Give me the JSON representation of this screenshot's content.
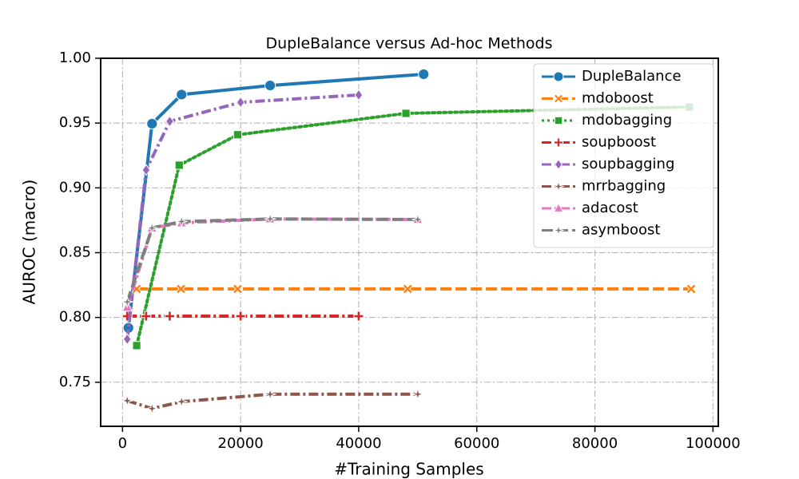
{
  "chart_data": {
    "type": "line",
    "title": "DupleBalance versus Ad-hoc Methods",
    "x_label": "#Training Samples",
    "y_label": "AUROC (macro)",
    "xlim": [
      -3700,
      100900
    ],
    "ylim": [
      0.716,
      1.0
    ],
    "xticks": [
      0,
      20000,
      40000,
      60000,
      80000,
      100000
    ],
    "yticks": [
      0.75,
      {
        "value": 0.8,
        "label": "0.80"
      },
      0.85,
      {
        "value": 0.9,
        "label": "0.90"
      },
      0.95,
      {
        "value": 1.0,
        "label": "1.00"
      }
    ],
    "grid": true,
    "legend": "upper right",
    "series": [
      {
        "name": "DupleBalance",
        "color": "#1f77b4",
        "dash": "solid",
        "marker": "circle",
        "x": [
          1000,
          5000,
          10000,
          25000,
          51000
        ],
        "values": [
          0.792,
          0.9495,
          0.972,
          0.979,
          0.9877
        ]
      },
      {
        "name": "mdoboost",
        "color": "#ff7f0e",
        "dash": "dashed",
        "marker": "x",
        "x": [
          2400,
          9900,
          19500,
          48300,
          96300
        ],
        "values": [
          0.822,
          0.822,
          0.822,
          0.822,
          0.822
        ]
      },
      {
        "name": "mdobagging",
        "color": "#2ca02c",
        "dash": "dotted",
        "marker": "square",
        "x": [
          2400,
          9600,
          19500,
          48000,
          96000
        ],
        "values": [
          0.7783,
          0.9175,
          0.941,
          0.9575,
          0.9624
        ]
      },
      {
        "name": "soupboost",
        "color": "#d62728",
        "dash": "dashdot",
        "marker": "plus",
        "x": [
          800,
          4000,
          8000,
          20000,
          40000
        ],
        "values": [
          0.801,
          0.801,
          0.801,
          0.801,
          0.801
        ]
      },
      {
        "name": "soupbagging",
        "color": "#9467bd",
        "dash": "dashdot",
        "marker": "diamond",
        "x": [
          800,
          4000,
          8000,
          20000,
          40000
        ],
        "values": [
          0.7833,
          0.9138,
          0.9513,
          0.966,
          0.9717
        ]
      },
      {
        "name": "mrrbagging",
        "color": "#8c564b",
        "dash": "dashdot",
        "marker": "star",
        "x": [
          800,
          5000,
          10000,
          25000,
          50000
        ],
        "values": [
          0.7358,
          0.7297,
          0.735,
          0.7408,
          0.7408
        ]
      },
      {
        "name": "adacost",
        "color": "#e377c2",
        "dash": "dashdot",
        "marker": "triangle",
        "x": [
          800,
          5000,
          10000,
          25000,
          50000
        ],
        "values": [
          0.808,
          0.869,
          0.873,
          0.876,
          0.8756
        ]
      },
      {
        "name": "asymboost",
        "color": "#7f7f7f",
        "dash": "dashed",
        "marker": "star",
        "x": [
          800,
          5000,
          10000,
          25000,
          50000
        ],
        "values": [
          0.812,
          0.869,
          0.874,
          0.876,
          0.8756
        ]
      }
    ]
  }
}
